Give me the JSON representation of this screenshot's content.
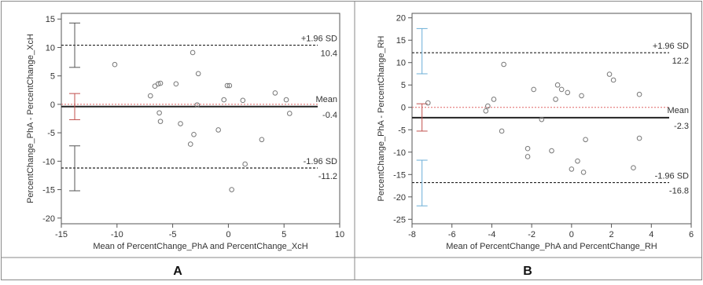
{
  "panels": [
    {
      "label": "A",
      "chart_data": {
        "type": "scatter",
        "title": "",
        "xlabel": "Mean of PercentChange_PhA and PercentChange_XcH",
        "ylabel": "PercentChange_PhA - PercentChange_XcH",
        "xlim": [
          -15,
          10
        ],
        "ylim": [
          -21,
          16
        ],
        "xticks": [
          -15,
          -10,
          -5,
          0,
          5,
          10
        ],
        "yticks": [
          -20,
          -15,
          -10,
          -5,
          0,
          5,
          10,
          15
        ],
        "grid": false,
        "points": [
          {
            "x": -10.2,
            "y": 7.0
          },
          {
            "x": -6.6,
            "y": 3.2
          },
          {
            "x": -6.3,
            "y": 3.6
          },
          {
            "x": -6.1,
            "y": 3.7
          },
          {
            "x": -7.0,
            "y": 1.5
          },
          {
            "x": -6.2,
            "y": -1.5
          },
          {
            "x": -6.1,
            "y": -3.0
          },
          {
            "x": -4.7,
            "y": 3.6
          },
          {
            "x": -4.3,
            "y": -3.4
          },
          {
            "x": -3.2,
            "y": 9.1
          },
          {
            "x": -2.7,
            "y": 5.4
          },
          {
            "x": -3.1,
            "y": -5.3
          },
          {
            "x": -3.4,
            "y": -7.0
          },
          {
            "x": -2.8,
            "y": -0.1
          },
          {
            "x": -0.9,
            "y": -4.5
          },
          {
            "x": -0.4,
            "y": 0.8
          },
          {
            "x": -0.1,
            "y": 3.3
          },
          {
            "x": 0.1,
            "y": 3.3
          },
          {
            "x": 0.3,
            "y": -15.0
          },
          {
            "x": 1.3,
            "y": 0.7
          },
          {
            "x": 1.5,
            "y": -10.5
          },
          {
            "x": 3.0,
            "y": -6.2
          },
          {
            "x": 4.2,
            "y": 2.0
          },
          {
            "x": 5.2,
            "y": 0.8
          },
          {
            "x": 5.5,
            "y": -1.6
          }
        ],
        "mean": -0.4,
        "upper_loa": 10.4,
        "lower_loa": -11.2,
        "ref_line": 0,
        "mean_label": "Mean",
        "upper_label": "+1.96 SD",
        "lower_label": "-1.96 SD",
        "mean_value_label": "-0.4",
        "upper_value_label": "10.4",
        "lower_value_label": "-11.2",
        "ci_x": -13.8,
        "ci_bars": [
          {
            "low": 6.5,
            "high": 14.3,
            "color": "#555555"
          },
          {
            "low": -2.7,
            "high": 1.9,
            "color": "#c0504d"
          },
          {
            "low": -15.2,
            "high": -7.3,
            "color": "#555555"
          }
        ]
      }
    },
    {
      "label": "B",
      "chart_data": {
        "type": "scatter",
        "title": "",
        "xlabel": "Mean of PercentChange_PhA and PercentChange_RH",
        "ylabel": "PercentChange_PhA - PercentChange_RH",
        "xlim": [
          -8,
          6
        ],
        "ylim": [
          -26,
          21
        ],
        "xticks": [
          -8,
          -6,
          -4,
          -2,
          0,
          2,
          4,
          6
        ],
        "yticks": [
          -25,
          -20,
          -15,
          -10,
          -5,
          0,
          5,
          10,
          15,
          20
        ],
        "grid": false,
        "points": [
          {
            "x": -7.2,
            "y": 1.0
          },
          {
            "x": -4.3,
            "y": -0.8
          },
          {
            "x": -4.2,
            "y": 0.3
          },
          {
            "x": -3.9,
            "y": 1.8
          },
          {
            "x": -3.4,
            "y": 9.6
          },
          {
            "x": -3.5,
            "y": -5.3
          },
          {
            "x": -2.2,
            "y": -9.2
          },
          {
            "x": -2.2,
            "y": -11.0
          },
          {
            "x": -1.9,
            "y": 4.0
          },
          {
            "x": -1.5,
            "y": -2.7
          },
          {
            "x": -1.0,
            "y": -9.7
          },
          {
            "x": -0.8,
            "y": 1.8
          },
          {
            "x": -0.7,
            "y": 5.0
          },
          {
            "x": -0.5,
            "y": 4.0
          },
          {
            "x": -0.2,
            "y": 3.3
          },
          {
            "x": 0.0,
            "y": -13.8
          },
          {
            "x": 0.3,
            "y": -12.0
          },
          {
            "x": 0.5,
            "y": 2.6
          },
          {
            "x": 0.6,
            "y": -14.5
          },
          {
            "x": 0.7,
            "y": -7.2
          },
          {
            "x": 1.9,
            "y": 7.4
          },
          {
            "x": 2.1,
            "y": 6.1
          },
          {
            "x": 3.1,
            "y": -13.5
          },
          {
            "x": 3.4,
            "y": 2.9
          },
          {
            "x": 3.4,
            "y": -6.9
          }
        ],
        "mean": -2.3,
        "upper_loa": 12.2,
        "lower_loa": -16.8,
        "ref_line": 0,
        "mean_label": "Mean",
        "upper_label": "+1.96 SD",
        "lower_label": "-1.96 SD",
        "mean_value_label": "-2.3",
        "upper_value_label": "12.2",
        "lower_value_label": "-16.8",
        "ci_x": -7.5,
        "ci_bars": [
          {
            "low": 7.5,
            "high": 17.6,
            "color": "#6baed6"
          },
          {
            "low": -5.3,
            "high": 0.8,
            "color": "#c0504d"
          },
          {
            "low": -22.0,
            "high": -11.8,
            "color": "#6baed6"
          }
        ]
      }
    }
  ],
  "colors": {
    "frame": "#555555",
    "points": "#777777",
    "ref_line": "#e06666",
    "mean_line": "#222222",
    "text": "#333333"
  }
}
